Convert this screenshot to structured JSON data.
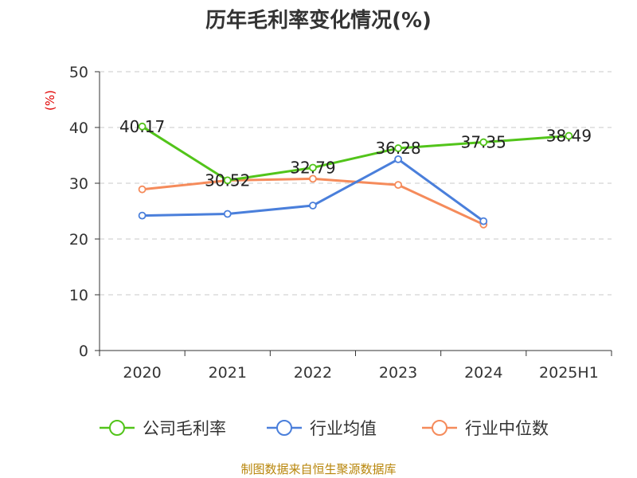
{
  "chart_data": {
    "type": "line",
    "title": "历年毛利率变化情况(%)",
    "ylabel": "(%)",
    "categories": [
      "2020",
      "2021",
      "2022",
      "2023",
      "2024",
      "2025H1"
    ],
    "ylim": [
      0,
      50
    ],
    "yticks": [
      "0",
      "10",
      "20",
      "30",
      "40",
      "50"
    ],
    "grid": true,
    "legend_position": "bottom",
    "series": [
      {
        "name": "公司毛利率",
        "color": "#52c41a",
        "values": [
          40.17,
          30.52,
          32.79,
          36.28,
          37.35,
          38.49
        ],
        "labels": [
          "40.17",
          "30.52",
          "32.79",
          "36.28",
          "37.35",
          "38.49"
        ]
      },
      {
        "name": "行业均值",
        "color": "#4a7fdb",
        "values": [
          24.2,
          24.5,
          26.0,
          34.3,
          23.2,
          null
        ]
      },
      {
        "name": "行业中位数",
        "color": "#f58b5b",
        "values": [
          28.9,
          30.5,
          30.8,
          29.7,
          22.6,
          null
        ]
      }
    ]
  },
  "footer": {
    "source": "制图数据来自恒生聚源数据库"
  }
}
